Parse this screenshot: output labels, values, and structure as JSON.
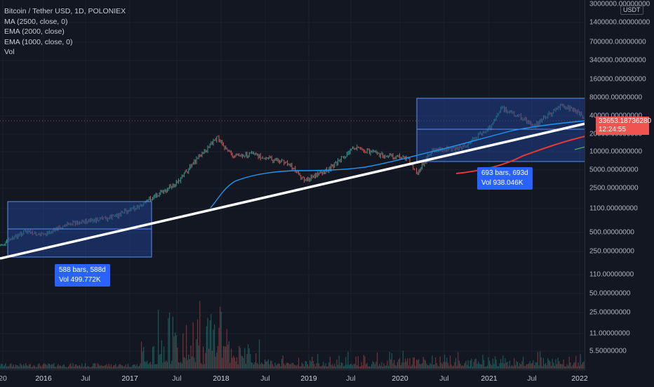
{
  "legend": {
    "symbol": "Bitcoin / Tether USD, 1D, POLONIEX",
    "ma": "MA (2500, close, 0)",
    "ema2000": "EMA (2000, close)",
    "ema1000": "EMA (1000, close, 0)",
    "vol": "Vol"
  },
  "price_axis": {
    "top_label": "3000000.00000000",
    "currency": "USDT",
    "ticks": [
      "1400000.00000000",
      "700000.00000000",
      "340000.00000000",
      "160000.00000000",
      "80000.00000000",
      "40000.00000000",
      "20000.00000000",
      "10000.00000000",
      "5000.00000000",
      "2500.00000000",
      "1100.00000000",
      "500.00000000",
      "250.00000000",
      "110.00000000",
      "50.00000000",
      "25.00000000",
      "11.00000000",
      "5.50000000"
    ],
    "current_price": "33653.18736280",
    "countdown": "12:24:55"
  },
  "time_axis": {
    "labels": [
      "20",
      "2016",
      "Jul",
      "2017",
      "Jul",
      "2018",
      "Jul",
      "2019",
      "Jul",
      "2020",
      "Jul",
      "2021",
      "Jul",
      "2022"
    ]
  },
  "measurements": [
    {
      "bars": "588 bars, 588d",
      "vol": "Vol 499.772K"
    },
    {
      "bars": "693 bars, 693d",
      "vol": "Vol 938.046K"
    }
  ],
  "colors": {
    "background": "#131722",
    "up": "#26a69a",
    "down": "#ef5350",
    "ma_line": "#2196f3",
    "ema2000_line": "#e53935",
    "ema1000_line": "#4caf50",
    "trendline": "#ffffff",
    "box_fill": "#1e3f8a",
    "box_border": "#5b8def",
    "price_tag": "#f05350",
    "badge": "#2962ff"
  },
  "chart_data": {
    "type": "candlestick",
    "symbol": "BTC/USDT",
    "scale": "log",
    "x_range": [
      "2015-06",
      "2022-01"
    ],
    "y_range": [
      4,
      3000000
    ],
    "approx_close_path": [
      {
        "date": "2015-08",
        "price": 230
      },
      {
        "date": "2016-06",
        "price": 650
      },
      {
        "date": "2017-06",
        "price": 2500
      },
      {
        "date": "2017-12",
        "price": 17000
      },
      {
        "date": "2018-12",
        "price": 3500
      },
      {
        "date": "2019-06",
        "price": 12000
      },
      {
        "date": "2020-03",
        "price": 5000
      },
      {
        "date": "2021-04",
        "price": 60000
      },
      {
        "date": "2021-11",
        "price": 67000
      },
      {
        "date": "2022-01",
        "price": 33653.19
      }
    ],
    "last_price": 33653.1873628
  }
}
